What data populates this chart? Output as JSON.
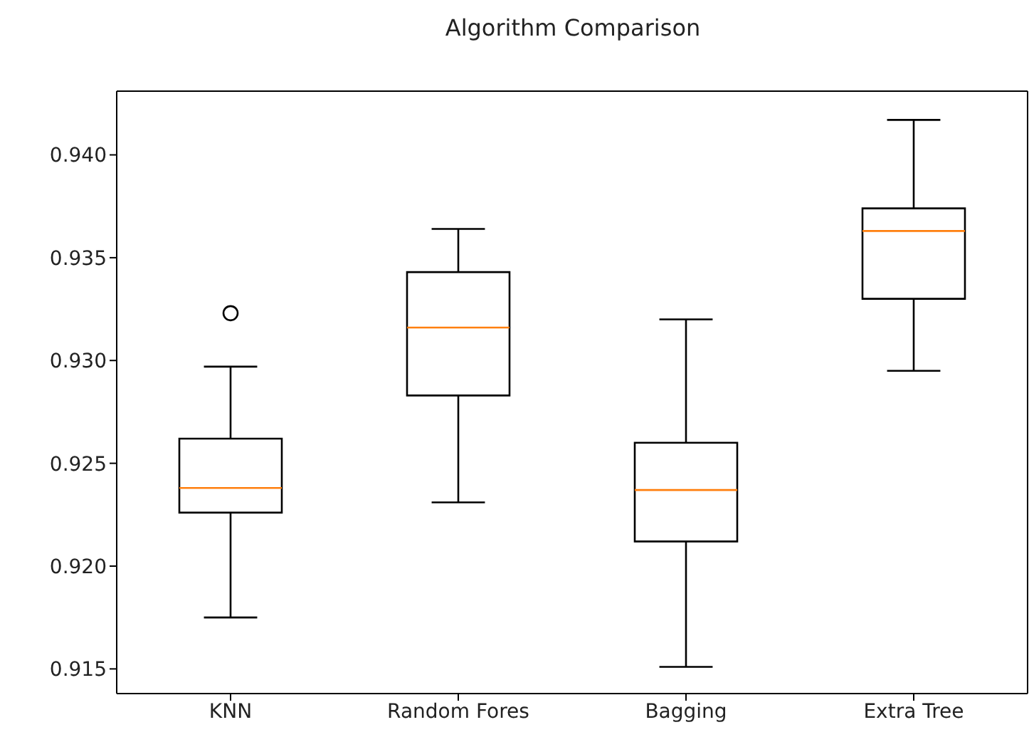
{
  "chart_data": {
    "type": "box",
    "title": "Algorithm Comparison",
    "categories": [
      "KNN",
      "Random Fores",
      "Bagging",
      "Extra Tree"
    ],
    "boxes": [
      {
        "low": 0.9175,
        "q1": 0.9226,
        "median": 0.9238,
        "q3": 0.9262,
        "high": 0.9297,
        "outliers": [
          0.9323
        ]
      },
      {
        "low": 0.9231,
        "q1": 0.9283,
        "median": 0.9316,
        "q3": 0.9343,
        "high": 0.9364
      },
      {
        "low": 0.9151,
        "q1": 0.9212,
        "median": 0.9237,
        "q3": 0.926,
        "high": 0.932
      },
      {
        "low": 0.9295,
        "q1": 0.933,
        "median": 0.9363,
        "q3": 0.9374,
        "high": 0.9417
      }
    ],
    "ylim": [
      0.9138,
      0.9431
    ],
    "yticks": [
      0.915,
      {
        "value": 0.92,
        "label": "0.920"
      },
      0.925,
      {
        "value": 0.93,
        "label": "0.930"
      },
      0.935,
      {
        "value": 0.94,
        "label": "0.940"
      }
    ],
    "grid": false
  }
}
